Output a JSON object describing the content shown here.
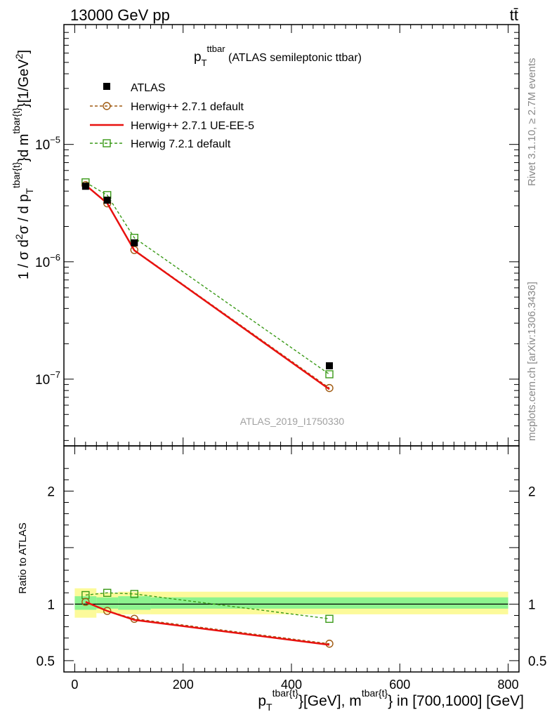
{
  "header": {
    "left": "13000 GeV pp",
    "right": "tt̄"
  },
  "side_labels": {
    "rivet": "Rivet 3.1.10, ≥ 2.7M events",
    "mcplots": "mcplots.cern.ch [arXiv:1306.3436]"
  },
  "title": {
    "main": "p",
    "sub": "T",
    "sup": "ttbar",
    "rest": " (ATLAS semileptonic ttbar)"
  },
  "analysis_id": "ATLAS_2019_I1750330",
  "axes": {
    "y_main_label": "1 / σ d²σ / d p_T^{tbar{t}} d m^{tbar{t}} [1/GeV²]",
    "y_ratio_label": "Ratio to ATLAS",
    "x_label": "p_T^{tbar{t}} [GeV], m^{tbar{t}} in [700,1000] [GeV]",
    "x_label_parts": {
      "p": "p",
      "sub": "T",
      "sup1": "tbar{t}",
      "mid": "}[GeV], m",
      "sup2": "tbar{t}",
      "end": "} in [700,1000] [GeV]"
    },
    "y_label_parts": {
      "a": "1 / σ d",
      "b": "2",
      "c": "σ / d p",
      "d": "T",
      "e": "tbar{t}",
      "f": "}d m",
      "g": "tbar{t}",
      "h": "}[1/GeV",
      "i": "2",
      "j": "]"
    }
  },
  "legend": [
    {
      "label": "ATLAS",
      "style": "data"
    },
    {
      "label": "Herwig++ 2.7.1 default",
      "style": "circle-dashed"
    },
    {
      "label": "Herwig++ 2.7.1 UE-EE-5",
      "style": "solid"
    },
    {
      "label": "Herwig 7.2.1 default",
      "style": "square-dashed"
    }
  ],
  "colors": {
    "data": "#000000",
    "herwigpp_default": "#a05a10",
    "herwigpp_ueee5": "#e8110f",
    "herwig7": "#3a9a18",
    "band_outer": "#fcfa9a",
    "band_inner": "#8cf38e"
  },
  "chart_data": {
    "type": "line",
    "xlim": [
      -20,
      820
    ],
    "main": {
      "yscale": "log",
      "ylim": [
        2.7e-08,
        0.000105
      ],
      "yticks": [
        {
          "value": 1e-05,
          "base": "10",
          "exp": "−5"
        },
        {
          "value": 1e-06,
          "base": "10",
          "exp": "−6"
        },
        {
          "value": 1e-07,
          "base": "10",
          "exp": "−7"
        }
      ]
    },
    "ratio": {
      "ylim": [
        0.4,
        2.4
      ],
      "yticks": [
        {
          "value": 0.5,
          "label": "0.5"
        },
        {
          "value": 1,
          "label": "1"
        },
        {
          "value": 2,
          "label": "2"
        }
      ]
    },
    "xticks": [
      {
        "value": 0,
        "label": "0"
      },
      {
        "value": 200,
        "label": "200"
      },
      {
        "value": 400,
        "label": "400"
      },
      {
        "value": 600,
        "label": "600"
      },
      {
        "value": 800,
        "label": "800"
      }
    ],
    "bins": [
      {
        "lo": 0,
        "hi": 40
      },
      {
        "lo": 40,
        "hi": 80
      },
      {
        "lo": 80,
        "hi": 140
      },
      {
        "lo": 140,
        "hi": 800
      }
    ],
    "x": [
      20,
      60,
      110,
      470
    ],
    "series": [
      {
        "name": "ATLAS",
        "key": "data",
        "values": [
          4.4e-06,
          3.35e-06,
          1.45e-06,
          1.3e-07
        ],
        "ratio": [
          1,
          1,
          1,
          1
        ]
      },
      {
        "name": "Herwig++ 2.7.1 default",
        "key": "herwigpp_default",
        "values": [
          4.5e-06,
          3.15e-06,
          1.26e-06,
          8.4e-08
        ],
        "ratio": [
          1.02,
          0.94,
          0.87,
          0.65
        ]
      },
      {
        "name": "Herwig++ 2.7.1 UE-EE-5",
        "key": "herwigpp_ueee5",
        "values": [
          4.5e-06,
          3.15e-06,
          1.25e-06,
          8.2e-08
        ],
        "ratio": [
          1.02,
          0.94,
          0.86,
          0.64
        ]
      },
      {
        "name": "Herwig 7.2.1 default",
        "key": "herwig7",
        "values": [
          4.75e-06,
          3.7e-06,
          1.6e-06,
          1.1e-07
        ],
        "ratio": [
          1.08,
          1.1,
          1.09,
          0.87
        ]
      }
    ],
    "uncertainty_band": {
      "inner": [
        [
          0.95,
          1.07
        ],
        [
          0.96,
          1.06
        ],
        [
          0.95,
          1.07
        ],
        [
          0.96,
          1.06
        ]
      ],
      "outer": [
        [
          0.88,
          1.14
        ],
        [
          0.92,
          1.1
        ],
        [
          0.91,
          1.11
        ],
        [
          0.91,
          1.11
        ]
      ]
    }
  }
}
